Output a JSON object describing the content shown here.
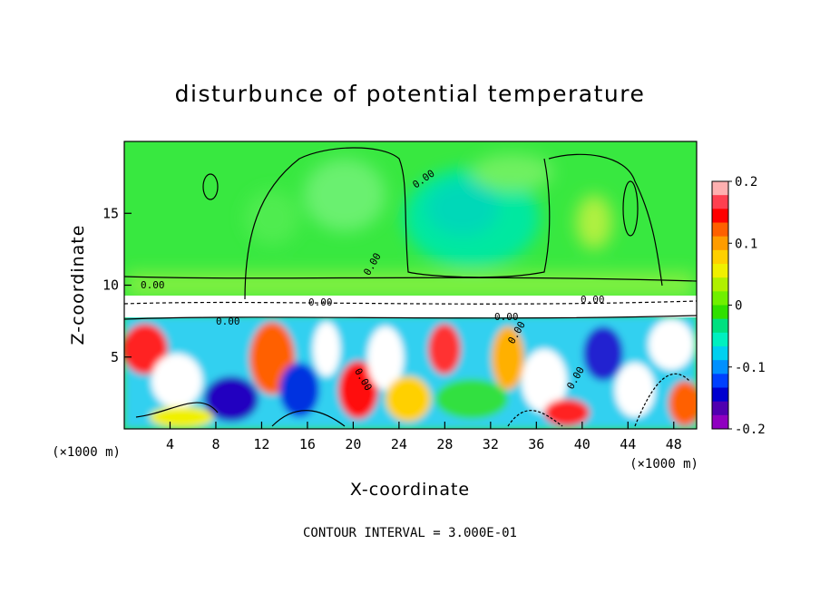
{
  "chart_data": {
    "type": "heatmap",
    "title": "disturbunce of potential temperature",
    "xlabel": "X-coordinate",
    "ylabel": "Z-coordinate",
    "x_unit_left": "(×1000 m)",
    "x_unit_right": "(×1000 m)",
    "xlim": [
      0,
      50
    ],
    "ylim": [
      0,
      20
    ],
    "x_ticks": [
      "4",
      "8",
      "12",
      "16",
      "20",
      "24",
      "28",
      "32",
      "36",
      "40",
      "44",
      "48"
    ],
    "y_ticks": [
      "5",
      "10",
      "15"
    ],
    "colorbar": {
      "range": [
        -0.2,
        0.2
      ],
      "tick_labels": [
        "0.2",
        "0.1",
        "0",
        "-0.1",
        "-0.2"
      ],
      "colors": [
        "#ffb0b0",
        "#ff4050",
        "#ff0000",
        "#ff6000",
        "#ff9c00",
        "#ffd000",
        "#f0f000",
        "#b0f000",
        "#70f000",
        "#30e000",
        "#00e080",
        "#00f0c0",
        "#00d0f0",
        "#0090ff",
        "#0040ff",
        "#0000d0",
        "#5000b0",
        "#9000c0"
      ]
    },
    "contour_labels": [
      "0.00",
      "0.00",
      "0.00",
      "0.00",
      "0.00",
      "0.00",
      "0.00",
      "0.00",
      "0.00",
      "0.00"
    ],
    "footer": "CONTOUR INTERVAL = 3.000E-01"
  }
}
